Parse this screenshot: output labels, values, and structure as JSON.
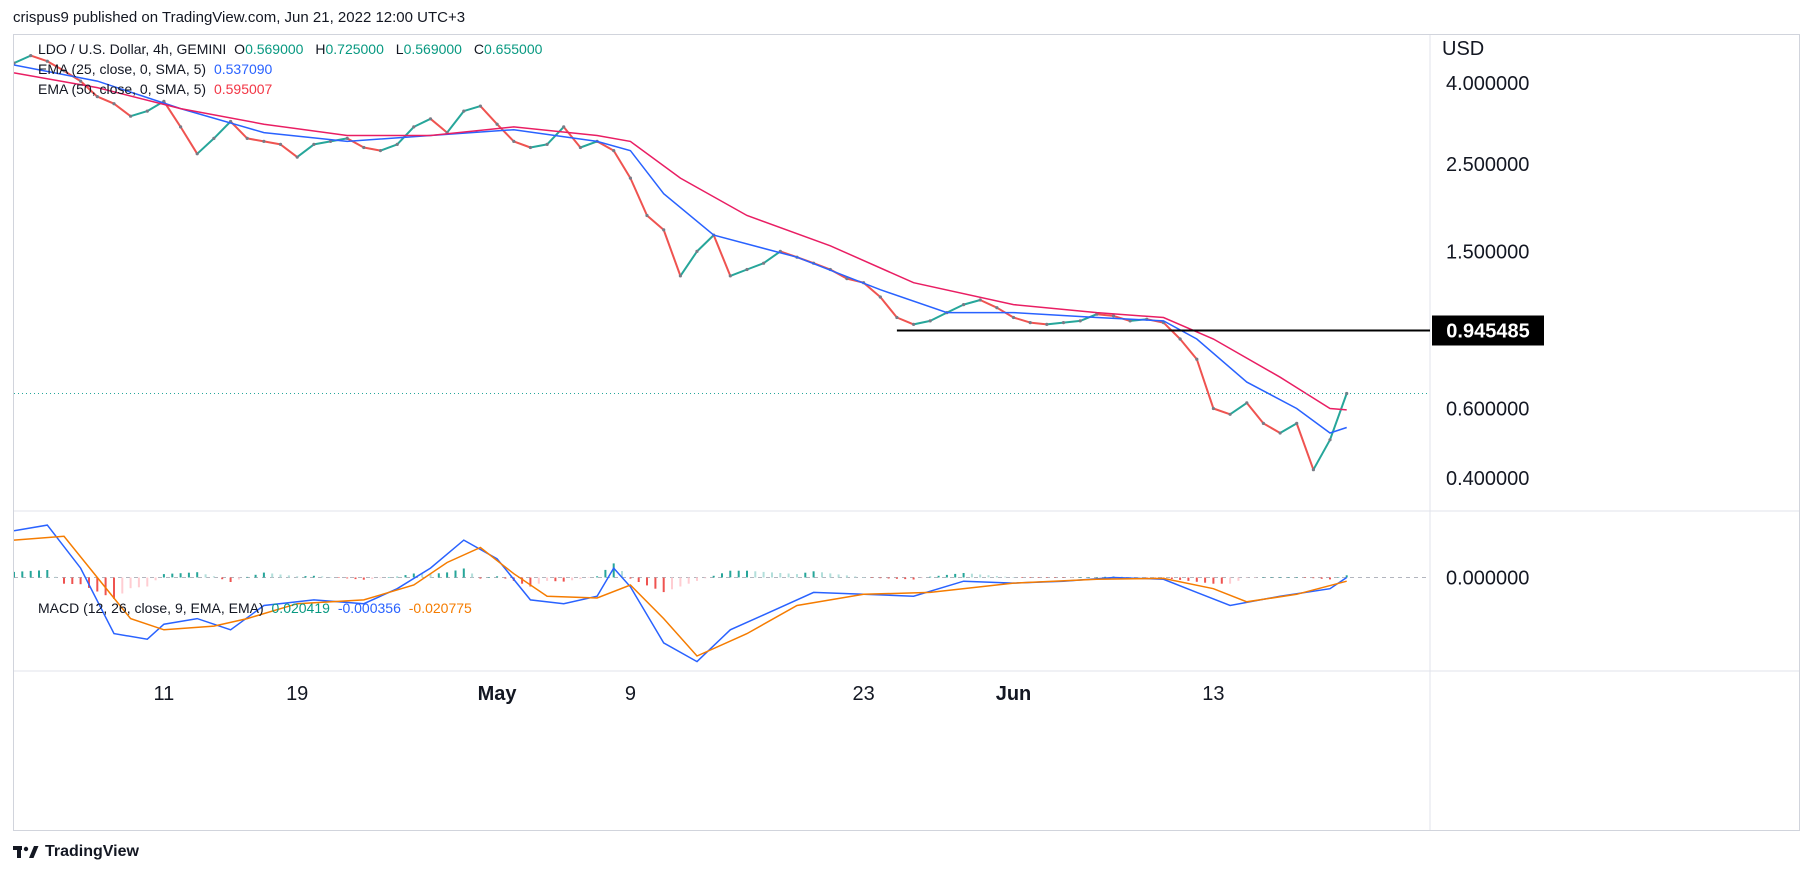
{
  "publisher": "crispus9 published on TradingView.com, Jun 21, 2022 12:00 UTC+3",
  "footer": {
    "brand": "TradingView",
    "logo_icon": "tradingview-logo-icon"
  },
  "legend": {
    "symbol": "LDO / U.S. Dollar, 4h, GEMINI",
    "ohlc": [
      {
        "k": "O",
        "v": "0.569000"
      },
      {
        "k": "H",
        "v": "0.725000"
      },
      {
        "k": "L",
        "v": "0.569000"
      },
      {
        "k": "C",
        "v": "0.655000"
      }
    ],
    "ema25_label": "EMA (25, close, 0, SMA, 5)",
    "ema25_value": "0.537090",
    "ema50_label": "EMA (50, close, 0, SMA, 5)",
    "ema50_value": "0.595007",
    "macd_label": "MACD (12, 26, close, 9, EMA, EMA)",
    "macd_values": [
      "0.020419",
      "-0.000356",
      "-0.020775"
    ]
  },
  "colors": {
    "up": "#26a69a",
    "down": "#ef5350",
    "ema25": "#2962ff",
    "ema50": "#e91e63",
    "macd": "#2962ff",
    "signal": "#f57c00",
    "hist_up": "#26a69a",
    "hist_down": "#ef5350",
    "hist_up_light": "#b2dfdb",
    "hist_down_light": "#ffcdd2"
  },
  "chart_data": {
    "type": "line",
    "price_scale": "log",
    "currency_label": "USD",
    "price_ticks": [
      "4.000000",
      "2.500000",
      "1.500000",
      "0.600000",
      "0.400000"
    ],
    "price_tick_values": [
      4.0,
      2.5,
      1.5,
      0.6,
      0.4
    ],
    "macd_ticks": [
      "0.000000"
    ],
    "macd_tick_values": [
      0.0
    ],
    "x_ticks": [
      "11",
      "19",
      "May",
      "9",
      "23",
      "Jun",
      "13"
    ],
    "x_tick_dates": [
      "2022-04-11",
      "2022-04-19",
      "2022-05-01",
      "2022-05-09",
      "2022-05-23",
      "2022-06-01",
      "2022-06-13"
    ],
    "x_range": [
      "2022-04-02",
      "2022-06-26"
    ],
    "y_range": [
      0.33,
      5.3
    ],
    "support_line": {
      "value": 0.945485,
      "label": "0.945485",
      "from": "2022-05-25",
      "to": "2022-06-26"
    },
    "last_price": 0.655,
    "price_path": [
      {
        "d": "2022-04-02",
        "v": 4.5
      },
      {
        "d": "2022-04-03",
        "v": 4.7
      },
      {
        "d": "2022-04-04",
        "v": 4.55
      },
      {
        "d": "2022-04-05",
        "v": 4.3
      },
      {
        "d": "2022-04-06",
        "v": 4.05
      },
      {
        "d": "2022-04-07",
        "v": 3.7
      },
      {
        "d": "2022-04-08",
        "v": 3.55
      },
      {
        "d": "2022-04-09",
        "v": 3.3
      },
      {
        "d": "2022-04-10",
        "v": 3.4
      },
      {
        "d": "2022-04-11",
        "v": 3.6
      },
      {
        "d": "2022-04-12",
        "v": 3.1
      },
      {
        "d": "2022-04-13",
        "v": 2.65
      },
      {
        "d": "2022-04-14",
        "v": 2.9
      },
      {
        "d": "2022-04-15",
        "v": 3.2
      },
      {
        "d": "2022-04-16",
        "v": 2.9
      },
      {
        "d": "2022-04-17",
        "v": 2.85
      },
      {
        "d": "2022-04-18",
        "v": 2.8
      },
      {
        "d": "2022-04-19",
        "v": 2.6
      },
      {
        "d": "2022-04-20",
        "v": 2.8
      },
      {
        "d": "2022-04-21",
        "v": 2.85
      },
      {
        "d": "2022-04-22",
        "v": 2.9
      },
      {
        "d": "2022-04-23",
        "v": 2.75
      },
      {
        "d": "2022-04-24",
        "v": 2.7
      },
      {
        "d": "2022-04-25",
        "v": 2.8
      },
      {
        "d": "2022-04-26",
        "v": 3.1
      },
      {
        "d": "2022-04-27",
        "v": 3.25
      },
      {
        "d": "2022-04-28",
        "v": 3.0
      },
      {
        "d": "2022-04-29",
        "v": 3.4
      },
      {
        "d": "2022-04-30",
        "v": 3.5
      },
      {
        "d": "2022-05-01",
        "v": 3.15
      },
      {
        "d": "2022-05-02",
        "v": 2.85
      },
      {
        "d": "2022-05-03",
        "v": 2.75
      },
      {
        "d": "2022-05-04",
        "v": 2.8
      },
      {
        "d": "2022-05-05",
        "v": 3.1
      },
      {
        "d": "2022-05-06",
        "v": 2.75
      },
      {
        "d": "2022-05-07",
        "v": 2.85
      },
      {
        "d": "2022-05-08",
        "v": 2.7
      },
      {
        "d": "2022-05-09",
        "v": 2.3
      },
      {
        "d": "2022-05-10",
        "v": 1.85
      },
      {
        "d": "2022-05-11",
        "v": 1.7
      },
      {
        "d": "2022-05-12",
        "v": 1.3
      },
      {
        "d": "2022-05-13",
        "v": 1.5
      },
      {
        "d": "2022-05-14",
        "v": 1.65
      },
      {
        "d": "2022-05-15",
        "v": 1.3
      },
      {
        "d": "2022-05-16",
        "v": 1.35
      },
      {
        "d": "2022-05-17",
        "v": 1.4
      },
      {
        "d": "2022-05-18",
        "v": 1.5
      },
      {
        "d": "2022-05-19",
        "v": 1.45
      },
      {
        "d": "2022-05-20",
        "v": 1.4
      },
      {
        "d": "2022-05-21",
        "v": 1.35
      },
      {
        "d": "2022-05-22",
        "v": 1.28
      },
      {
        "d": "2022-05-23",
        "v": 1.25
      },
      {
        "d": "2022-05-24",
        "v": 1.15
      },
      {
        "d": "2022-05-25",
        "v": 1.02
      },
      {
        "d": "2022-05-26",
        "v": 0.98
      },
      {
        "d": "2022-05-27",
        "v": 1.0
      },
      {
        "d": "2022-05-28",
        "v": 1.05
      },
      {
        "d": "2022-05-29",
        "v": 1.1
      },
      {
        "d": "2022-05-30",
        "v": 1.13
      },
      {
        "d": "2022-05-31",
        "v": 1.08
      },
      {
        "d": "2022-06-01",
        "v": 1.02
      },
      {
        "d": "2022-06-02",
        "v": 0.99
      },
      {
        "d": "2022-06-03",
        "v": 0.98
      },
      {
        "d": "2022-06-04",
        "v": 0.99
      },
      {
        "d": "2022-06-05",
        "v": 1.0
      },
      {
        "d": "2022-06-06",
        "v": 1.04
      },
      {
        "d": "2022-06-07",
        "v": 1.03
      },
      {
        "d": "2022-06-08",
        "v": 1.0
      },
      {
        "d": "2022-06-09",
        "v": 1.01
      },
      {
        "d": "2022-06-10",
        "v": 0.99
      },
      {
        "d": "2022-06-11",
        "v": 0.9
      },
      {
        "d": "2022-06-12",
        "v": 0.8
      },
      {
        "d": "2022-06-13",
        "v": 0.6
      },
      {
        "d": "2022-06-14",
        "v": 0.58
      },
      {
        "d": "2022-06-15",
        "v": 0.62
      },
      {
        "d": "2022-06-16",
        "v": 0.55
      },
      {
        "d": "2022-06-17",
        "v": 0.52
      },
      {
        "d": "2022-06-18",
        "v": 0.55
      },
      {
        "d": "2022-06-19",
        "v": 0.42
      },
      {
        "d": "2022-06-20",
        "v": 0.5
      },
      {
        "d": "2022-06-21",
        "v": 0.655
      }
    ],
    "series": [
      {
        "name": "EMA (25, close, 0, SMA, 5)",
        "points": [
          {
            "d": "2022-04-02",
            "v": 4.45
          },
          {
            "d": "2022-04-07",
            "v": 4.05
          },
          {
            "d": "2022-04-12",
            "v": 3.45
          },
          {
            "d": "2022-04-17",
            "v": 3.0
          },
          {
            "d": "2022-04-22",
            "v": 2.85
          },
          {
            "d": "2022-04-27",
            "v": 2.95
          },
          {
            "d": "2022-05-02",
            "v": 3.05
          },
          {
            "d": "2022-05-07",
            "v": 2.85
          },
          {
            "d": "2022-05-09",
            "v": 2.7
          },
          {
            "d": "2022-05-11",
            "v": 2.1
          },
          {
            "d": "2022-05-14",
            "v": 1.65
          },
          {
            "d": "2022-05-19",
            "v": 1.45
          },
          {
            "d": "2022-05-24",
            "v": 1.2
          },
          {
            "d": "2022-05-28",
            "v": 1.05
          },
          {
            "d": "2022-06-01",
            "v": 1.05
          },
          {
            "d": "2022-06-06",
            "v": 1.02
          },
          {
            "d": "2022-06-10",
            "v": 1.0
          },
          {
            "d": "2022-06-12",
            "v": 0.9
          },
          {
            "d": "2022-06-15",
            "v": 0.7
          },
          {
            "d": "2022-06-18",
            "v": 0.6
          },
          {
            "d": "2022-06-20",
            "v": 0.52
          },
          {
            "d": "2022-06-21",
            "v": 0.537
          }
        ]
      },
      {
        "name": "EMA (50, close, 0, SMA, 5)",
        "points": [
          {
            "d": "2022-04-02",
            "v": 4.25
          },
          {
            "d": "2022-04-07",
            "v": 3.9
          },
          {
            "d": "2022-04-12",
            "v": 3.45
          },
          {
            "d": "2022-04-17",
            "v": 3.15
          },
          {
            "d": "2022-04-22",
            "v": 2.95
          },
          {
            "d": "2022-04-27",
            "v": 2.95
          },
          {
            "d": "2022-05-02",
            "v": 3.1
          },
          {
            "d": "2022-05-07",
            "v": 2.95
          },
          {
            "d": "2022-05-09",
            "v": 2.85
          },
          {
            "d": "2022-05-12",
            "v": 2.3
          },
          {
            "d": "2022-05-16",
            "v": 1.85
          },
          {
            "d": "2022-05-21",
            "v": 1.55
          },
          {
            "d": "2022-05-26",
            "v": 1.25
          },
          {
            "d": "2022-06-01",
            "v": 1.1
          },
          {
            "d": "2022-06-06",
            "v": 1.05
          },
          {
            "d": "2022-06-10",
            "v": 1.02
          },
          {
            "d": "2022-06-13",
            "v": 0.9
          },
          {
            "d": "2022-06-17",
            "v": 0.72
          },
          {
            "d": "2022-06-20",
            "v": 0.6
          },
          {
            "d": "2022-06-21",
            "v": 0.595
          }
        ]
      }
    ],
    "macd_range": [
      -0.5,
      0.35
    ],
    "macd_series": [
      {
        "name": "MACD",
        "points": [
          {
            "d": "2022-04-02",
            "v": 0.25
          },
          {
            "d": "2022-04-04",
            "v": 0.28
          },
          {
            "d": "2022-04-06",
            "v": 0.05
          },
          {
            "d": "2022-04-08",
            "v": -0.3
          },
          {
            "d": "2022-04-10",
            "v": -0.33
          },
          {
            "d": "2022-04-11",
            "v": -0.25
          },
          {
            "d": "2022-04-13",
            "v": -0.22
          },
          {
            "d": "2022-04-15",
            "v": -0.28
          },
          {
            "d": "2022-04-17",
            "v": -0.15
          },
          {
            "d": "2022-04-20",
            "v": -0.12
          },
          {
            "d": "2022-04-23",
            "v": -0.14
          },
          {
            "d": "2022-04-25",
            "v": -0.06
          },
          {
            "d": "2022-04-27",
            "v": 0.05
          },
          {
            "d": "2022-04-29",
            "v": 0.2
          },
          {
            "d": "2022-05-01",
            "v": 0.1
          },
          {
            "d": "2022-05-03",
            "v": -0.12
          },
          {
            "d": "2022-05-05",
            "v": -0.14
          },
          {
            "d": "2022-05-07",
            "v": -0.1
          },
          {
            "d": "2022-05-08",
            "v": 0.05
          },
          {
            "d": "2022-05-09",
            "v": -0.05
          },
          {
            "d": "2022-05-11",
            "v": -0.35
          },
          {
            "d": "2022-05-13",
            "v": -0.45
          },
          {
            "d": "2022-05-15",
            "v": -0.28
          },
          {
            "d": "2022-05-17",
            "v": -0.2
          },
          {
            "d": "2022-05-20",
            "v": -0.08
          },
          {
            "d": "2022-05-23",
            "v": -0.09
          },
          {
            "d": "2022-05-26",
            "v": -0.1
          },
          {
            "d": "2022-05-29",
            "v": -0.02
          },
          {
            "d": "2022-06-01",
            "v": -0.03
          },
          {
            "d": "2022-06-04",
            "v": -0.02
          },
          {
            "d": "2022-06-07",
            "v": 0.0
          },
          {
            "d": "2022-06-10",
            "v": -0.01
          },
          {
            "d": "2022-06-12",
            "v": -0.08
          },
          {
            "d": "2022-06-14",
            "v": -0.15
          },
          {
            "d": "2022-06-17",
            "v": -0.1
          },
          {
            "d": "2022-06-20",
            "v": -0.06
          },
          {
            "d": "2022-06-21",
            "v": -0.0004
          }
        ]
      },
      {
        "name": "Signal",
        "points": [
          {
            "d": "2022-04-02",
            "v": 0.2
          },
          {
            "d": "2022-04-05",
            "v": 0.22
          },
          {
            "d": "2022-04-07",
            "v": 0.0
          },
          {
            "d": "2022-04-09",
            "v": -0.22
          },
          {
            "d": "2022-04-11",
            "v": -0.28
          },
          {
            "d": "2022-04-14",
            "v": -0.26
          },
          {
            "d": "2022-04-16",
            "v": -0.22
          },
          {
            "d": "2022-04-19",
            "v": -0.14
          },
          {
            "d": "2022-04-23",
            "v": -0.12
          },
          {
            "d": "2022-04-26",
            "v": -0.04
          },
          {
            "d": "2022-04-28",
            "v": 0.08
          },
          {
            "d": "2022-04-30",
            "v": 0.16
          },
          {
            "d": "2022-05-02",
            "v": 0.02
          },
          {
            "d": "2022-05-04",
            "v": -0.1
          },
          {
            "d": "2022-05-07",
            "v": -0.11
          },
          {
            "d": "2022-05-09",
            "v": -0.04
          },
          {
            "d": "2022-05-11",
            "v": -0.22
          },
          {
            "d": "2022-05-13",
            "v": -0.42
          },
          {
            "d": "2022-05-16",
            "v": -0.3
          },
          {
            "d": "2022-05-19",
            "v": -0.15
          },
          {
            "d": "2022-05-23",
            "v": -0.09
          },
          {
            "d": "2022-05-27",
            "v": -0.08
          },
          {
            "d": "2022-06-01",
            "v": -0.03
          },
          {
            "d": "2022-06-06",
            "v": -0.01
          },
          {
            "d": "2022-06-10",
            "v": -0.005
          },
          {
            "d": "2022-06-13",
            "v": -0.06
          },
          {
            "d": "2022-06-15",
            "v": -0.13
          },
          {
            "d": "2022-06-18",
            "v": -0.09
          },
          {
            "d": "2022-06-21",
            "v": -0.02
          }
        ]
      }
    ]
  }
}
